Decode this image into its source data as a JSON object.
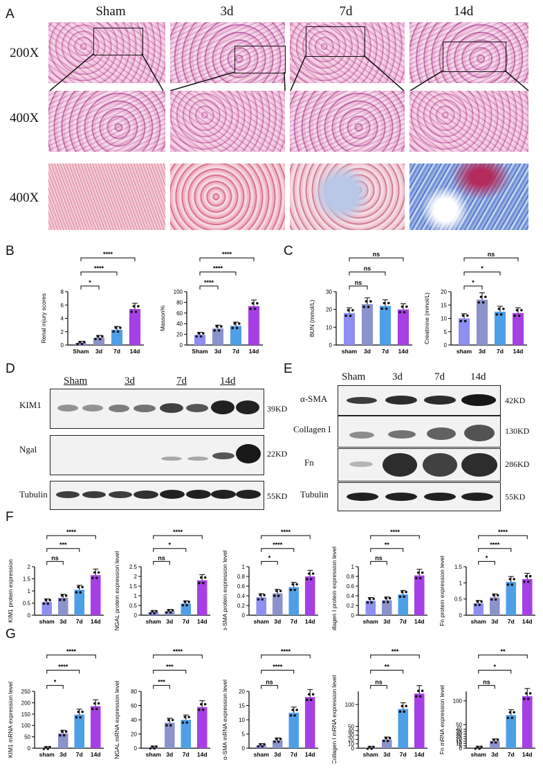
{
  "figure": {
    "panels": {
      "A": "A",
      "B": "B",
      "C": "C",
      "D": "D",
      "E": "E",
      "F": "F",
      "G": "G"
    },
    "groups": [
      "Sham",
      "3d",
      "7d",
      "14d"
    ],
    "magnifications": [
      "200X",
      "400X",
      "400X"
    ]
  },
  "blot_D": {
    "lanes": [
      "Sham",
      "3d",
      "7d",
      "14d"
    ],
    "rows": [
      {
        "label": "KIM1",
        "size": "39KD"
      },
      {
        "label": "Ngal",
        "size": "22KD"
      },
      {
        "label": "Tubulin",
        "size": "55KD"
      }
    ]
  },
  "blot_E": {
    "lanes": [
      "Sham",
      "3d",
      "7d",
      "14d"
    ],
    "rows": [
      {
        "label": "α-SMA",
        "size": "42KD"
      },
      {
        "label": "Collagen I",
        "size": "130KD"
      },
      {
        "label": "Fn",
        "size": "286KD"
      },
      {
        "label": "Tubulin",
        "size": "55KD"
      }
    ]
  },
  "colors": {
    "sham": "#8e8ff0",
    "d3": "#8b93cc",
    "d7": "#4f9fe8",
    "d14": "#a640e6"
  },
  "chart_data": [
    {
      "id": "B1",
      "type": "bar",
      "ylabel": "Renal injury scores",
      "categories": [
        "Sham",
        "3d",
        "7d",
        "14d"
      ],
      "values": [
        0.3,
        1.1,
        2.3,
        5.4
      ],
      "ylim": [
        0,
        8
      ],
      "yticks": [
        0,
        2,
        4,
        6,
        8
      ],
      "comparisons": [
        {
          "to": "3d",
          "label": "*"
        },
        {
          "to": "7d",
          "label": "****"
        },
        {
          "to": "14d",
          "label": "****"
        }
      ]
    },
    {
      "id": "B2",
      "type": "bar",
      "ylabel": "Masson%",
      "categories": [
        "Sham",
        "3d",
        "7d",
        "14d"
      ],
      "values": [
        19,
        31,
        36,
        73
      ],
      "ylim": [
        0,
        100
      ],
      "yticks": [
        0,
        20,
        40,
        60,
        80,
        100
      ],
      "comparisons": [
        {
          "to": "3d",
          "label": "****"
        },
        {
          "to": "7d",
          "label": "****"
        },
        {
          "to": "14d",
          "label": "****"
        }
      ]
    },
    {
      "id": "C1",
      "type": "bar",
      "ylabel": "BUN (mmol/L)",
      "categories": [
        "sham",
        "3d",
        "7d",
        "14d"
      ],
      "values": [
        18,
        23,
        22,
        20
      ],
      "ylim": [
        0,
        30
      ],
      "yticks": [
        0,
        10,
        20,
        30
      ],
      "comparisons": [
        {
          "to": "3d",
          "label": "ns"
        },
        {
          "to": "7d",
          "label": "ns"
        },
        {
          "to": "14d",
          "label": "ns"
        }
      ]
    },
    {
      "id": "C2",
      "type": "bar",
      "ylabel": "Creatinine (mmol/L)",
      "categories": [
        "sham",
        "3d",
        "7d",
        "14d"
      ],
      "values": [
        10,
        17,
        12.5,
        12
      ],
      "ylim": [
        0,
        20
      ],
      "yticks": [
        0,
        5,
        10,
        15,
        20
      ],
      "comparisons": [
        {
          "to": "3d",
          "label": "*"
        },
        {
          "to": "7d",
          "label": "*"
        },
        {
          "to": "14d",
          "label": "ns"
        }
      ]
    },
    {
      "id": "F1",
      "type": "bar",
      "ylabel": "KIM1 protein expression",
      "categories": [
        "sham",
        "3d",
        "7d",
        "14d"
      ],
      "values": [
        0.55,
        0.72,
        1.05,
        1.65
      ],
      "ylim": [
        0,
        2.0
      ],
      "yticks": [
        0,
        0.5,
        1.0,
        1.5,
        2.0
      ],
      "comparisons": [
        {
          "to": "3d",
          "label": "ns"
        },
        {
          "to": "7d",
          "label": "***"
        },
        {
          "to": "14d",
          "label": "****"
        }
      ]
    },
    {
      "id": "F2",
      "type": "bar",
      "ylabel": "NGAL protein expression level",
      "categories": [
        "sham",
        "3d",
        "7d",
        "14d"
      ],
      "values": [
        0.15,
        0.2,
        0.6,
        1.8
      ],
      "ylim": [
        0,
        2.5
      ],
      "yticks": [
        0,
        0.5,
        1.0,
        1.5,
        2.0,
        2.5
      ],
      "comparisons": [
        {
          "to": "3d",
          "label": "ns"
        },
        {
          "to": "7d",
          "label": "*"
        },
        {
          "to": "14d",
          "label": "****"
        }
      ]
    },
    {
      "id": "F3",
      "type": "bar",
      "ylabel": "α-SMA protein expression level",
      "categories": [
        "sham",
        "3d",
        "7d",
        "14d"
      ],
      "values": [
        0.37,
        0.45,
        0.58,
        0.8
      ],
      "ylim": [
        0,
        1.0
      ],
      "yticks": [
        0,
        0.2,
        0.4,
        0.6,
        0.8,
        1.0
      ],
      "comparisons": [
        {
          "to": "3d",
          "label": "*"
        },
        {
          "to": "7d",
          "label": "****"
        },
        {
          "to": "14d",
          "label": "****"
        }
      ]
    },
    {
      "id": "F4",
      "type": "bar",
      "ylabel": "collagen I protein expression level",
      "categories": [
        "sham",
        "3d",
        "7d",
        "14d"
      ],
      "values": [
        0.3,
        0.31,
        0.43,
        0.82
      ],
      "ylim": [
        0,
        1.0
      ],
      "yticks": [
        0,
        0.2,
        0.4,
        0.6,
        0.8,
        1.0
      ],
      "comparisons": [
        {
          "to": "3d",
          "label": "ns"
        },
        {
          "to": "7d",
          "label": "**"
        },
        {
          "to": "14d",
          "label": "****"
        }
      ]
    },
    {
      "id": "F5",
      "type": "bar",
      "ylabel": "Fn protein expression level",
      "categories": [
        "sham",
        "3d",
        "7d",
        "14d"
      ],
      "values": [
        0.37,
        0.55,
        1.03,
        1.12
      ],
      "ylim": [
        0,
        1.5
      ],
      "yticks": [
        0,
        0.5,
        1.0,
        1.5
      ],
      "comparisons": [
        {
          "to": "3d",
          "label": "*"
        },
        {
          "to": "7d",
          "label": "****"
        },
        {
          "to": "14d",
          "label": "****"
        }
      ]
    },
    {
      "id": "G1",
      "type": "bar",
      "ylabel": "KIM1 mRNA expression level",
      "categories": [
        "sham",
        "3d",
        "7d",
        "14d"
      ],
      "values": [
        1,
        65,
        148,
        185
      ],
      "ylim": [
        0,
        250
      ],
      "yticks": [
        0,
        50,
        100,
        150,
        200,
        250
      ],
      "comparisons": [
        {
          "to": "3d",
          "label": "*"
        },
        {
          "to": "7d",
          "label": "****"
        },
        {
          "to": "14d",
          "label": "****"
        }
      ]
    },
    {
      "id": "G2",
      "type": "bar",
      "ylabel": "NGAL mRNA expression level",
      "categories": [
        "sham",
        "3d",
        "7d",
        "14d"
      ],
      "values": [
        1,
        36,
        40,
        58
      ],
      "ylim": [
        0,
        80
      ],
      "yticks": [
        0,
        20,
        40,
        60,
        80
      ],
      "comparisons": [
        {
          "to": "3d",
          "label": "***"
        },
        {
          "to": "7d",
          "label": "***"
        },
        {
          "to": "14d",
          "label": "****"
        }
      ]
    },
    {
      "id": "G3",
      "type": "bar",
      "ylabel": "α-SMA mRNA expression level",
      "categories": [
        "sham",
        "3d",
        "7d",
        "14d"
      ],
      "values": [
        1,
        2.8,
        12.5,
        18
      ],
      "ylim": [
        0,
        20
      ],
      "yticks": [
        0,
        5,
        10,
        15,
        20
      ],
      "comparisons": [
        {
          "to": "3d",
          "label": "ns"
        },
        {
          "to": "7d",
          "label": "****"
        },
        {
          "to": "14d",
          "label": "****"
        }
      ]
    },
    {
      "id": "G4",
      "type": "bar",
      "ylabel": "Collagen I mRNA expression level",
      "categories": [
        "sham",
        "3d",
        "7d",
        "14d"
      ],
      "values": [
        1,
        20,
        90,
        125
      ],
      "ylim": [
        0,
        130
      ],
      "yticks": [
        0,
        10,
        20,
        30,
        40,
        50,
        100
      ],
      "comparisons": [
        {
          "to": "3d",
          "label": "ns"
        },
        {
          "to": "7d",
          "label": "**"
        },
        {
          "to": "14d",
          "label": "***"
        }
      ]
    },
    {
      "id": "G5",
      "type": "bar",
      "ylabel": "Fn mRNA expression level",
      "categories": [
        "sham",
        "3d",
        "7d",
        "14d"
      ],
      "values": [
        1,
        15,
        70,
        110
      ],
      "ylim": [
        0,
        120
      ],
      "yticks": [
        0,
        5,
        10,
        15,
        20,
        25,
        30,
        35,
        40,
        50,
        100
      ],
      "comparisons": [
        {
          "to": "3d",
          "label": "ns"
        },
        {
          "to": "7d",
          "label": "*"
        },
        {
          "to": "14d",
          "label": "**"
        }
      ]
    }
  ]
}
